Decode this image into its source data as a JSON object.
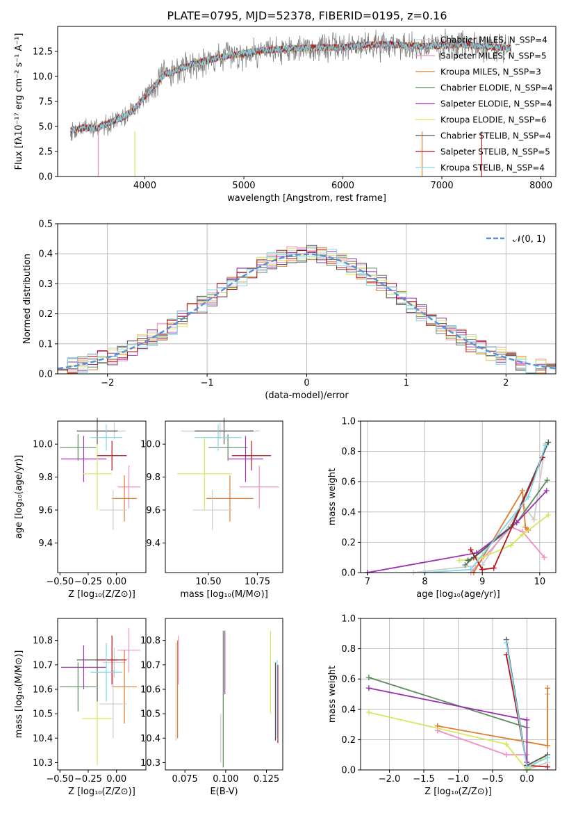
{
  "colors": {
    "data": "#808080",
    "models": [
      "#cccccc",
      "#f08fc3",
      "#e07b2a",
      "#5c8a5c",
      "#9a2fb0",
      "#d4e85a",
      "#555555",
      "#b8141e",
      "#7fd6e8"
    ],
    "gaussian": "#5b8fd6",
    "grid": "#b0b0b0"
  },
  "chart_data": [
    {
      "id": "spectrum",
      "type": "line",
      "title": "PLATE=0795, MJD=52378, FIBERID=0195, z=0.16",
      "xlabel": "wavelength [Angstrom, rest frame]",
      "ylabel": "Flux [fλ10⁻¹⁷ erg cm⁻² s⁻¹ A⁻¹]",
      "xlim": [
        3120,
        8150
      ],
      "ylim": [
        0,
        15
      ],
      "xticks": [
        "4000",
        "5000",
        "6000",
        "7000",
        "8000"
      ],
      "yticks": [
        "0.0",
        "2.5",
        "5.0",
        "7.5",
        "10.0",
        "12.5"
      ],
      "grid": false,
      "legend_position": "right",
      "continuum_x": [
        3250,
        3400,
        3500,
        3600,
        3700,
        3800,
        3900,
        4000,
        4200,
        4500,
        4800,
        5000,
        5200,
        5500,
        5800,
        6000,
        6300,
        6500,
        6800,
        7000,
        7200,
        7400,
        7600,
        7700
      ],
      "continuum_y": [
        4.6,
        4.9,
        4.8,
        5.2,
        5.6,
        6.0,
        6.8,
        8.0,
        10.2,
        11.3,
        12.0,
        12.3,
        12.6,
        12.8,
        12.9,
        12.9,
        13.2,
        13.2,
        13.0,
        13.1,
        13.2,
        13.0,
        12.9,
        12.8
      ],
      "legend": [
        "Chabrier MILES, N_SSP=4",
        "Salpeter MILES, N_SSP=5",
        "Kroupa MILES, N_SSP=3",
        "Chabrier ELODIE, N_SSP=4",
        "Salpeter ELODIE, N_SSP=4",
        "Kroupa ELODIE, N_SSP=6",
        "Chabrier STELIB, N_SSP=4",
        "Salpeter STELIB, N_SSP=5",
        "Kroupa STELIB, N_SSP=4"
      ]
    },
    {
      "id": "residuals",
      "type": "line",
      "xlabel": "(data-model)/error",
      "ylabel": "Normed distribution",
      "xlim": [
        -2.5,
        2.5
      ],
      "ylim": [
        0,
        0.5
      ],
      "xticks": [
        "−2",
        "−1",
        "0",
        "1",
        "2"
      ],
      "yticks": [
        "0.0",
        "0.1",
        "0.2",
        "0.3",
        "0.4",
        "0.5"
      ],
      "grid": true,
      "legend": [
        "𝒩(0, 1)"
      ],
      "legend_position": "top-right",
      "bin_width": 0.1
    },
    {
      "id": "age-vs-Z",
      "type": "scatter",
      "xlabel": "Z [log₁₀(Z/Z⊙)]",
      "ylabel": "age  [log₁₀(age/yr)]",
      "xlim": [
        -0.52,
        0.26
      ],
      "ylim": [
        9.22,
        10.14
      ],
      "xticks": [
        "−0.50",
        "−0.25",
        "0.00"
      ],
      "yticks": [
        "9.4",
        "9.6",
        "9.8",
        "10.0"
      ],
      "grid": false,
      "points": [
        {
          "x": -0.02,
          "y": 10.08,
          "xerr": 0.1,
          "yerr": 0.05
        },
        {
          "x": 0.11,
          "y": 9.74,
          "xerr": 0.1,
          "yerr": 0.13
        },
        {
          "x": 0.07,
          "y": 9.67,
          "xerr": 0.11,
          "yerr": 0.14
        },
        {
          "x": -0.34,
          "y": 9.98,
          "xerr": 0.16,
          "yerr": 0.08
        },
        {
          "x": -0.29,
          "y": 9.91,
          "xerr": 0.2,
          "yerr": 0.14
        },
        {
          "x": -0.17,
          "y": 9.82,
          "xerr": 0.13,
          "yerr": 0.22
        },
        {
          "x": -0.17,
          "y": 10.08,
          "xerr": 0.18,
          "yerr": 0.08
        },
        {
          "x": -0.04,
          "y": 9.93,
          "xerr": 0.13,
          "yerr": 0.09
        },
        {
          "x": -0.09,
          "y": 10.04,
          "xerr": 0.14,
          "yerr": 0.08
        },
        {
          "x": -0.03,
          "y": 9.6,
          "xerr": 0.12,
          "yerr": 0.12
        }
      ]
    },
    {
      "id": "age-vs-mass",
      "type": "scatter",
      "xlabel": "mass [log₁₀(M/M⊙)]",
      "ylabel": "",
      "xlim": [
        10.28,
        10.88
      ],
      "ylim": [
        9.22,
        10.14
      ],
      "xticks": [
        "10.50",
        "10.75"
      ],
      "yticks": [
        "9.4",
        "9.6",
        "9.8",
        "10.0"
      ],
      "grid": false,
      "points": [
        {
          "x": 10.56,
          "y": 10.08,
          "xerr": 0.2,
          "yerr": 0.05
        },
        {
          "x": 10.76,
          "y": 9.74,
          "xerr": 0.1,
          "yerr": 0.13
        },
        {
          "x": 10.61,
          "y": 9.67,
          "xerr": 0.12,
          "yerr": 0.14
        },
        {
          "x": 10.6,
          "y": 9.98,
          "xerr": 0.1,
          "yerr": 0.08
        },
        {
          "x": 10.69,
          "y": 9.91,
          "xerr": 0.09,
          "yerr": 0.14
        },
        {
          "x": 10.48,
          "y": 9.82,
          "xerr": 0.14,
          "yerr": 0.22
        },
        {
          "x": 10.58,
          "y": 10.08,
          "xerr": 0.15,
          "yerr": 0.08
        },
        {
          "x": 10.72,
          "y": 9.93,
          "xerr": 0.1,
          "yerr": 0.09
        },
        {
          "x": 10.55,
          "y": 10.04,
          "xerr": 0.12,
          "yerr": 0.08
        },
        {
          "x": 10.52,
          "y": 9.6,
          "xerr": 0.1,
          "yerr": 0.12
        }
      ]
    },
    {
      "id": "weight-vs-age",
      "type": "line",
      "xlabel": "age  [log₁₀(age/yr)]",
      "ylabel": "mass weight",
      "xlim": [
        6.88,
        10.28
      ],
      "ylim": [
        0,
        1
      ],
      "xticks": [
        "7",
        "8",
        "9",
        "10"
      ],
      "yticks": [
        "0.0",
        "0.2",
        "0.4",
        "0.6",
        "0.8",
        "1.0"
      ],
      "grid": true,
      "series": [
        {
          "x": [
            7.8,
            9.0,
            9.7,
            9.9,
            10.1
          ],
          "y": [
            0.0,
            0.05,
            0.45,
            0.35,
            0.85
          ]
        },
        {
          "x": [
            8.8,
            9.5,
            9.7,
            10.08
          ],
          "y": [
            0.0,
            0.3,
            0.27,
            0.1
          ]
        },
        {
          "x": [
            8.85,
            9.7,
            9.75,
            9.8
          ],
          "y": [
            0.0,
            0.54,
            0.3,
            0.28
          ]
        },
        {
          "x": [
            8.7,
            9.6,
            10.13
          ],
          "y": [
            0.05,
            0.33,
            0.61
          ]
        },
        {
          "x": [
            7.0,
            8.9,
            9.6,
            10.12
          ],
          "y": [
            0.0,
            0.13,
            0.33,
            0.54
          ]
        },
        {
          "x": [
            8.6,
            9.0,
            9.5,
            9.7,
            10.15
          ],
          "y": [
            0.08,
            0.1,
            0.18,
            0.25,
            0.38
          ]
        },
        {
          "x": [
            8.75,
            8.85,
            9.5,
            10.15
          ],
          "y": [
            0.08,
            0.1,
            0.3,
            0.86
          ]
        },
        {
          "x": [
            8.8,
            9.0,
            9.2,
            10.05
          ],
          "y": [
            0.15,
            0.02,
            0.03,
            0.76
          ]
        },
        {
          "x": [
            8.0,
            8.8,
            9.8,
            10.1
          ],
          "y": [
            0.0,
            0.02,
            0.5,
            0.84
          ]
        }
      ]
    },
    {
      "id": "mass-vs-Z",
      "type": "scatter",
      "xlabel": "Z [log₁₀(Z/Z⊙)]",
      "ylabel": "mass [log₁₀(M/M⊙)]",
      "xlim": [
        -0.52,
        0.26
      ],
      "ylim": [
        10.27,
        10.89
      ],
      "xticks": [
        "−0.50",
        "−0.25",
        "0.00"
      ],
      "yticks": [
        "10.3",
        "10.4",
        "10.5",
        "10.6",
        "10.7",
        "10.8"
      ],
      "grid": false,
      "points": [
        {
          "x": -0.02,
          "y": 10.71,
          "xerr": 0.1,
          "yerr": 0.06
        },
        {
          "x": 0.11,
          "y": 10.76,
          "xerr": 0.1,
          "yerr": 0.09
        },
        {
          "x": 0.07,
          "y": 10.61,
          "xerr": 0.11,
          "yerr": 0.15
        },
        {
          "x": -0.34,
          "y": 10.61,
          "xerr": 0.16,
          "yerr": 0.1
        },
        {
          "x": -0.29,
          "y": 10.69,
          "xerr": 0.2,
          "yerr": 0.09
        },
        {
          "x": -0.17,
          "y": 10.48,
          "xerr": 0.13,
          "yerr": 0.19
        },
        {
          "x": -0.17,
          "y": 10.72,
          "xerr": 0.18,
          "yerr": 0.17
        },
        {
          "x": -0.04,
          "y": 10.72,
          "xerr": 0.13,
          "yerr": 0.1
        },
        {
          "x": -0.09,
          "y": 10.67,
          "xerr": 0.14,
          "yerr": 0.12
        },
        {
          "x": -0.03,
          "y": 10.54,
          "xerr": 0.12,
          "yerr": 0.14
        }
      ]
    },
    {
      "id": "mass-vs-ebv",
      "type": "scatter",
      "xlabel": "E(B-V)",
      "ylabel": "",
      "xlim": [
        0.063,
        0.135
      ],
      "ylim": [
        10.27,
        10.89
      ],
      "xticks": [
        "0.075",
        "0.100",
        "0.125"
      ],
      "yticks": [
        "10.3",
        "10.4",
        "10.5",
        "10.6",
        "10.7",
        "10.8"
      ],
      "grid": false,
      "points": [
        {
          "x": 0.0695,
          "y": 10.59,
          "yerr": 0.2
        },
        {
          "x": 0.071,
          "y": 10.72,
          "yerr": 0.1
        },
        {
          "x": 0.0705,
          "y": 10.6,
          "yerr": 0.2
        },
        {
          "x": 0.0985,
          "y": 10.56,
          "yerr": 0.28
        },
        {
          "x": 0.0995,
          "y": 10.71,
          "yerr": 0.13
        },
        {
          "x": 0.1275,
          "y": 10.67,
          "yerr": 0.17
        },
        {
          "x": 0.1305,
          "y": 10.55,
          "yerr": 0.16
        },
        {
          "x": 0.132,
          "y": 10.54,
          "yerr": 0.16
        },
        {
          "x": 0.1315,
          "y": 10.56,
          "yerr": 0.16
        },
        {
          "x": 0.097,
          "y": 10.4,
          "yerr": 0.1
        }
      ]
    },
    {
      "id": "weight-vs-Z",
      "type": "line",
      "xlabel": "Z [log₁₀(Z/Z⊙)]",
      "ylabel": "mass weight",
      "xlim": [
        -2.42,
        0.42
      ],
      "ylim": [
        0,
        1
      ],
      "xticks": [
        "−2.0",
        "−1.5",
        "−1.0",
        "−0.5",
        "0.0"
      ],
      "yticks": [
        "0.0",
        "0.2",
        "0.4",
        "0.6",
        "0.8",
        "1.0"
      ],
      "grid": true,
      "series": [
        {
          "x": [
            0.0,
            0.3,
            0.3
          ],
          "y": [
            0.0,
            0.05,
            0.5
          ]
        },
        {
          "x": [
            -1.3,
            -0.3,
            0.0
          ],
          "y": [
            0.26,
            0.1,
            0.1
          ]
        },
        {
          "x": [
            -1.3,
            0.3,
            0.3
          ],
          "y": [
            0.29,
            0.16,
            0.54
          ]
        },
        {
          "x": [
            -2.3,
            0.0,
            0.0
          ],
          "y": [
            0.61,
            0.28,
            0.05
          ]
        },
        {
          "x": [
            -2.3,
            0.0,
            0.0
          ],
          "y": [
            0.54,
            0.33,
            0.05
          ]
        },
        {
          "x": [
            -2.3,
            -0.3,
            0.0,
            0.3
          ],
          "y": [
            0.38,
            0.17,
            0.0,
            0.1
          ]
        },
        {
          "x": [
            -0.3,
            0.0,
            0.3
          ],
          "y": [
            0.86,
            0.03,
            0.1
          ]
        },
        {
          "x": [
            -0.3,
            0.0,
            0.3
          ],
          "y": [
            0.76,
            0.03,
            0.02
          ]
        },
        {
          "x": [
            -0.3,
            0.0,
            0.3
          ],
          "y": [
            0.84,
            0.02,
            0.08
          ]
        }
      ]
    }
  ]
}
